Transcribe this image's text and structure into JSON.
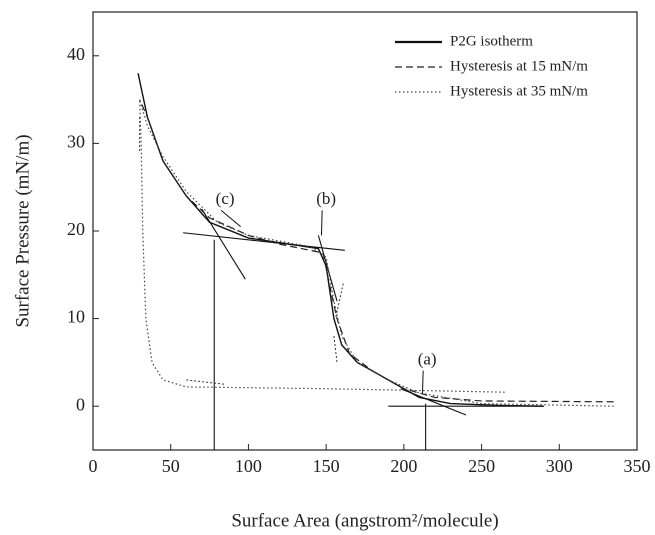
{
  "chart_data": {
    "type": "line",
    "x_label": "Surface Area (angstrom²/molecule)",
    "y_label": "Surface Pressure (mN/m)",
    "xlim": [
      0,
      350
    ],
    "xticks": [
      0,
      50,
      100,
      150,
      200,
      250,
      300,
      350
    ],
    "ylim": [
      -5,
      45
    ],
    "yticks": [
      0,
      10,
      20,
      30,
      40
    ],
    "legend": "upper right",
    "series": [
      {
        "name": "P2G isotherm",
        "color": "#111111",
        "dash": "solid",
        "x": [
          29,
          35,
          45,
          60,
          75,
          100,
          145,
          150,
          155,
          160,
          170,
          190,
          210,
          230,
          260,
          290
        ],
        "values": [
          38,
          33,
          28,
          24,
          21,
          19.2,
          18,
          16,
          10,
          7,
          5,
          3,
          1,
          0.3,
          0.1,
          0
        ]
      },
      {
        "name": "Hysteresis at 15 mN/m",
        "color": "#222222",
        "dash": "dashed",
        "x": [
          335,
          250,
          220,
          200,
          180,
          165,
          157,
          152,
          148,
          120,
          100,
          75,
          60,
          45,
          35,
          30
        ],
        "values": [
          0.5,
          0.6,
          1,
          2,
          4,
          6,
          10,
          14,
          17.5,
          18.5,
          19.5,
          21.5,
          24,
          28,
          33,
          35
        ]
      },
      {
        "name": "Hysteresis at 35 mN/m",
        "color": "#444444",
        "dash": "dotted",
        "x": [
          335,
          250,
          210,
          190,
          170,
          160,
          155,
          150,
          140,
          100,
          80,
          60,
          45,
          35,
          30,
          31,
          32,
          34,
          38,
          45,
          60,
          150,
          265
        ],
        "values": [
          0,
          0.3,
          1.5,
          3,
          5,
          8,
          12,
          17,
          18.2,
          19.5,
          21,
          24.5,
          28.5,
          32,
          35,
          30,
          20,
          10,
          5,
          3,
          2.2,
          2,
          1.6
        ]
      }
    ],
    "annotations": [
      "(a)",
      "(b)",
      "(c)"
    ]
  }
}
